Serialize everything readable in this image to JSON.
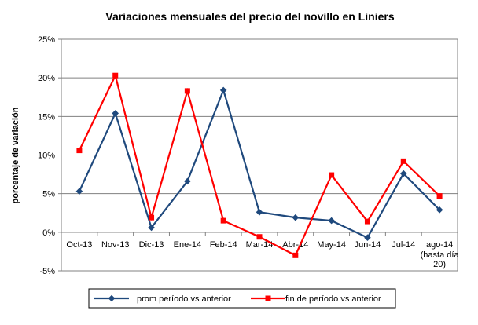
{
  "chart_data": {
    "type": "line",
    "title": "Variaciones mensuales del precio del novillo en Liniers",
    "xlabel": "",
    "ylabel": "porcentaje de variación",
    "categories": [
      "Oct-13",
      "Nov-13",
      "Dic-13",
      "Ene-14",
      "Feb-14",
      "Mar-14",
      "Abr-14",
      "May-14",
      "Jun-14",
      "Jul-14",
      "ago-14"
    ],
    "category_notes": [
      "",
      "",
      "",
      "",
      "",
      "",
      "",
      "",
      "",
      "",
      "(hasta día 20)"
    ],
    "y_ticks": [
      "25%",
      "20%",
      "15%",
      "10%",
      "5%",
      "0%",
      "-5%"
    ],
    "ylim": [
      -5,
      25
    ],
    "grid": true,
    "legend_position": "bottom",
    "series": [
      {
        "name": "prom período vs anterior",
        "color": "#1F497D",
        "marker": "diamond",
        "values": [
          5.3,
          15.4,
          0.6,
          6.6,
          18.4,
          2.6,
          1.9,
          1.5,
          -0.7,
          7.6,
          2.9
        ]
      },
      {
        "name": "fin de período vs anterior",
        "color": "#FF0000",
        "marker": "square",
        "values": [
          10.6,
          20.3,
          1.9,
          18.3,
          1.5,
          -0.6,
          -3.0,
          7.4,
          1.4,
          9.2,
          4.7
        ]
      }
    ]
  }
}
